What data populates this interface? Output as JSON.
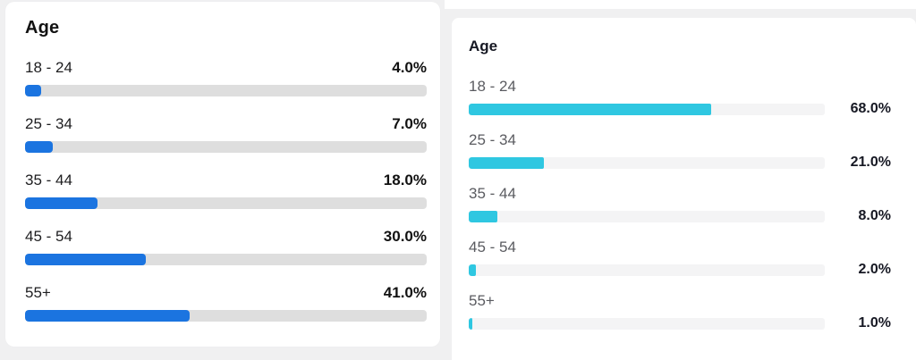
{
  "left_panel": {
    "title": "Age",
    "accent_color": "#1b74e0",
    "track_color": "#dedede",
    "rows": [
      {
        "label": "18 - 24",
        "value": "4.0%",
        "pct": 4
      },
      {
        "label": "25 - 34",
        "value": "7.0%",
        "pct": 7
      },
      {
        "label": "35 - 44",
        "value": "18.0%",
        "pct": 18
      },
      {
        "label": "45 - 54",
        "value": "30.0%",
        "pct": 30
      },
      {
        "label": "55+",
        "value": "41.0%",
        "pct": 41
      }
    ]
  },
  "right_panel": {
    "title": "Age",
    "accent_color": "#2fc7e1",
    "track_color": "#f4f4f5",
    "rows": [
      {
        "label": "18 - 24",
        "value": "68.0%",
        "pct": 68
      },
      {
        "label": "25 - 34",
        "value": "21.0%",
        "pct": 21
      },
      {
        "label": "35 - 44",
        "value": "8.0%",
        "pct": 8
      },
      {
        "label": "45 - 54",
        "value": "2.0%",
        "pct": 2
      },
      {
        "label": "55+",
        "value": "1.0%",
        "pct": 1
      }
    ]
  },
  "chart_data": [
    {
      "type": "bar",
      "orientation": "horizontal",
      "title": "Age",
      "categories": [
        "18 - 24",
        "25 - 34",
        "35 - 44",
        "45 - 54",
        "55+"
      ],
      "values": [
        4.0,
        7.0,
        18.0,
        30.0,
        41.0
      ],
      "unit": "%",
      "value_labels": [
        "4.0%",
        "7.0%",
        "18.0%",
        "30.0%",
        "41.0%"
      ],
      "bar_color": "#1b74e0",
      "track_color": "#dedede",
      "xlim": [
        0,
        100
      ],
      "grid": false,
      "legend": false
    },
    {
      "type": "bar",
      "orientation": "horizontal",
      "title": "Age",
      "categories": [
        "18 - 24",
        "25 - 34",
        "35 - 44",
        "45 - 54",
        "55+"
      ],
      "values": [
        68.0,
        21.0,
        8.0,
        2.0,
        1.0
      ],
      "unit": "%",
      "value_labels": [
        "68.0%",
        "21.0%",
        "8.0%",
        "2.0%",
        "1.0%"
      ],
      "bar_color": "#2fc7e1",
      "track_color": "#f4f4f5",
      "xlim": [
        0,
        100
      ],
      "grid": false,
      "legend": false
    }
  ]
}
